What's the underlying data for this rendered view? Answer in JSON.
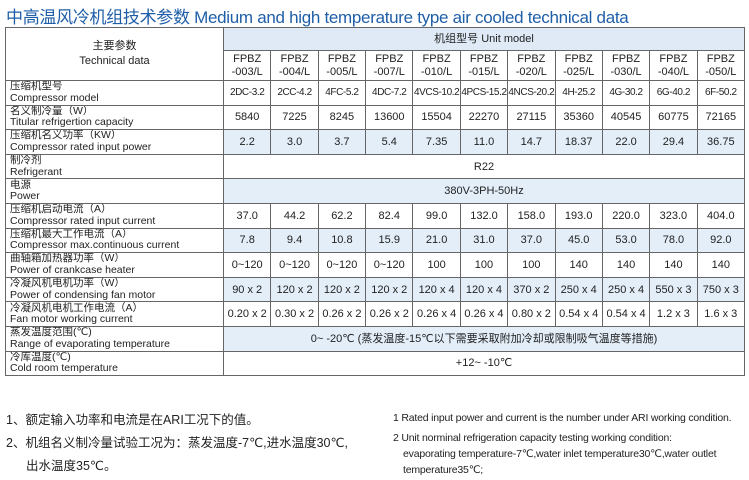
{
  "title": "中高温风冷机组技术参数 Medium and high temperature type air cooled technical data",
  "header": {
    "param_cn": "主要参数",
    "param_en": "Technical data",
    "unit_model": "机组型号  Unit model",
    "models": [
      [
        "FPBZ",
        "-003/L"
      ],
      [
        "FPBZ",
        "-004/L"
      ],
      [
        "FPBZ",
        "-005/L"
      ],
      [
        "FPBZ",
        "-007/L"
      ],
      [
        "FPBZ",
        "-010/L"
      ],
      [
        "FPBZ",
        "-015/L"
      ],
      [
        "FPBZ",
        "-020/L"
      ],
      [
        "FPBZ",
        "-025/L"
      ],
      [
        "FPBZ",
        "-030/L"
      ],
      [
        "FPBZ",
        "-040/L"
      ],
      [
        "FPBZ",
        "-050/L"
      ]
    ]
  },
  "rows": [
    {
      "cn": "压缩机型号",
      "en": "Compressor model",
      "values": [
        "2DC-3.2",
        "2CC-4.2",
        "4FC-5.2",
        "4DC-7.2",
        "4VCS-10.2",
        "4PCS-15.2",
        "4NCS-20.2",
        "4H-25.2",
        "4G-30.2",
        "6G-40.2",
        "6F-50.2"
      ]
    },
    {
      "cn": "名义制冷量（W）",
      "en": "Titular refrigertion capacity",
      "values": [
        "5840",
        "7225",
        "8245",
        "13600",
        "15504",
        "22270",
        "27115",
        "35360",
        "40545",
        "60775",
        "72165"
      ]
    },
    {
      "cn": "压缩机名义功率（KW）",
      "en": "Compressor rated input power",
      "values": [
        "2.2",
        "3.0",
        "3.7",
        "5.4",
        "7.35",
        "11.0",
        "14.7",
        "18.37",
        "22.0",
        "29.4",
        "36.75"
      ]
    },
    {
      "cn": "制冷剂",
      "en": "Refrigerant",
      "span": "R22"
    },
    {
      "cn": "电源",
      "en": "Power",
      "span": "380V-3PH-50Hz"
    },
    {
      "cn": "压缩机启动电流（A）",
      "en": "Compressor rated input current",
      "values": [
        "37.0",
        "44.2",
        "62.2",
        "82.4",
        "99.0",
        "132.0",
        "158.0",
        "193.0",
        "220.0",
        "323.0",
        "404.0"
      ]
    },
    {
      "cn": "压缩机最大工作电流（A）",
      "en": "Compressor max.continuous current",
      "values": [
        "7.8",
        "9.4",
        "10.8",
        "15.9",
        "21.0",
        "31.0",
        "37.0",
        "45.0",
        "53.0",
        "78.0",
        "92.0"
      ]
    },
    {
      "cn": "曲轴箱加热器功率（W）",
      "en": "Power of crankcase heater",
      "values": [
        "0~120",
        "0~120",
        "0~120",
        "0~120",
        "100",
        "100",
        "100",
        "140",
        "140",
        "140",
        "140"
      ]
    },
    {
      "cn": "冷凝风机电机功率（W）",
      "en": "Power of condensing fan motor",
      "values": [
        "90 x 2",
        "120 x 2",
        "120 x 2",
        "120 x 2",
        "120 x 4",
        "120 x 4",
        "370 x 2",
        "250 x 4",
        "250 x 4",
        "550 x 3",
        "750 x 3"
      ]
    },
    {
      "cn": "冷凝风机电机工作电流（A）",
      "en": "Fan motor working current",
      "values": [
        "0.20 x 2",
        "0.30 x 2",
        "0.26 x 2",
        "0.26 x 2",
        "0.26 x 4",
        "0.26 x 4",
        "0.80 x 2",
        "0.54 x 4",
        "0.54 x 4",
        "1.2 x 3",
        "1.6 x 3"
      ]
    },
    {
      "cn": "蒸发温度范围(℃)",
      "en": "Range of evaporating temperature",
      "span": "0~ -20℃  (蒸发温度-15℃以下需要采取附加冷却或限制吸气温度等措施)"
    },
    {
      "cn": "冷库温度(℃)",
      "en": "Cold room temperature",
      "span": "+12~ -10℃"
    }
  ],
  "notes_cn": [
    "1、额定输入功率和电流是在ARI工况下的值。",
    "2、机组名义制冷量试验工况为：蒸发温度-7℃,进水温度30℃,",
    "出水温度35℃。"
  ],
  "notes_en": [
    "1  Rated input power and current is the number under ARI working condition.",
    "2  Unit norminal refrigeration capacity testing working condition:",
    "evaporating temperature-7℃,water inlet temperature30℃,water outlet",
    "temperature35℃;"
  ],
  "colors": {
    "title": "#1f5ea8",
    "header_bg": "#dfeaf6",
    "row_bg": "#e3eef9"
  }
}
